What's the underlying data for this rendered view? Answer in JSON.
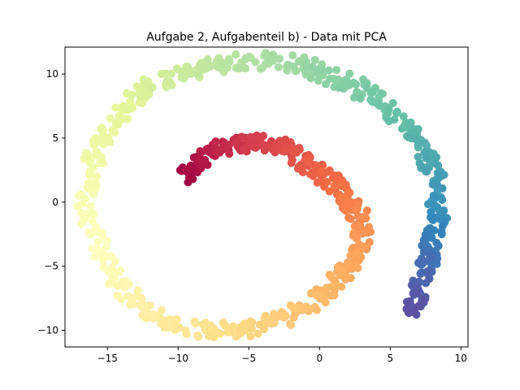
{
  "chart_data": {
    "type": "scatter",
    "title": "Aufgabe 2, Aufgabenteil b) - Data mit PCA",
    "xlabel": "",
    "ylabel": "",
    "xlim": [
      -18.0,
      10.5
    ],
    "ylim": [
      -11.3,
      12.1
    ],
    "xticks": [
      -15,
      -10,
      -5,
      0,
      5,
      10
    ],
    "yticks": [
      -10,
      -5,
      0,
      5,
      10
    ],
    "xtick_labels": [
      "−15",
      "−10",
      "−5",
      "0",
      "5",
      "10"
    ],
    "ytick_labels": [
      "−10",
      "−5",
      "0",
      "5",
      "10"
    ],
    "grid": false,
    "legend": "none",
    "colormap": "Spectral",
    "colormap_stops": [
      "#9e0142",
      "#d53e4f",
      "#f46d43",
      "#fdae61",
      "#fee08b",
      "#ffffbf",
      "#e6f598",
      "#abdda4",
      "#66c2a5",
      "#3288bd",
      "#5e4fa2"
    ],
    "description": "Spiral-shaped point cloud; color encodes position along the spiral from dark red at the inner start to purple at the outer end.",
    "series": [
      {
        "values": [
          [
            -9.5,
            1.8
          ],
          [
            -9.2,
            2.6
          ],
          [
            -8.6,
            3.2
          ],
          [
            -7.8,
            3.8
          ],
          [
            -7.0,
            4.1
          ],
          [
            -6.2,
            4.4
          ],
          [
            -5.4,
            4.6
          ],
          [
            -4.5,
            4.6
          ],
          [
            -3.5,
            4.5
          ],
          [
            -2.6,
            4.2
          ],
          [
            -1.8,
            3.7
          ],
          [
            -1.0,
            3.1
          ],
          [
            -0.3,
            2.6
          ],
          [
            0.5,
            1.9
          ],
          [
            1.2,
            1.3
          ],
          [
            1.9,
            0.6
          ],
          [
            2.4,
            -0.2
          ],
          [
            2.9,
            -1.2
          ],
          [
            3.0,
            -2.3
          ],
          [
            2.8,
            -3.3
          ],
          [
            2.3,
            -4.4
          ],
          [
            1.6,
            -5.6
          ],
          [
            0.6,
            -6.9
          ],
          [
            -0.5,
            -7.8
          ],
          [
            -1.6,
            -8.5
          ],
          [
            -2.9,
            -9.1
          ],
          [
            -4.3,
            -9.6
          ],
          [
            -5.8,
            -10.0
          ],
          [
            -7.4,
            -10.0
          ],
          [
            -9.0,
            -9.8
          ],
          [
            -10.6,
            -9.4
          ],
          [
            -11.8,
            -8.7
          ],
          [
            -13.0,
            -7.6
          ],
          [
            -14.0,
            -6.3
          ],
          [
            -14.8,
            -5.0
          ],
          [
            -15.6,
            -3.4
          ],
          [
            -16.1,
            -1.8
          ],
          [
            -16.5,
            0.0
          ],
          [
            -16.4,
            1.7
          ],
          [
            -16.0,
            3.3
          ],
          [
            -15.3,
            4.8
          ],
          [
            -14.5,
            6.2
          ],
          [
            -13.6,
            7.4
          ],
          [
            -12.6,
            8.5
          ],
          [
            -11.3,
            9.4
          ],
          [
            -9.8,
            10.1
          ],
          [
            -8.4,
            10.5
          ],
          [
            -6.8,
            10.8
          ],
          [
            -5.0,
            11.0
          ],
          [
            -3.4,
            11.1
          ],
          [
            -1.8,
            10.8
          ],
          [
            -0.6,
            10.5
          ],
          [
            0.8,
            9.9
          ],
          [
            2.1,
            9.3
          ],
          [
            3.2,
            8.6
          ],
          [
            4.3,
            7.8
          ],
          [
            5.4,
            6.8
          ],
          [
            6.2,
            5.8
          ],
          [
            6.9,
            4.6
          ],
          [
            7.6,
            3.4
          ],
          [
            8.1,
            2.2
          ],
          [
            8.3,
            0.8
          ],
          [
            8.4,
            -0.5
          ],
          [
            8.2,
            -1.7
          ],
          [
            8.0,
            -2.8
          ],
          [
            7.8,
            -3.9
          ],
          [
            7.6,
            -4.8
          ],
          [
            7.3,
            -5.8
          ],
          [
            7.1,
            -6.8
          ],
          [
            6.9,
            -7.8
          ],
          [
            6.7,
            -8.6
          ]
        ]
      }
    ]
  }
}
